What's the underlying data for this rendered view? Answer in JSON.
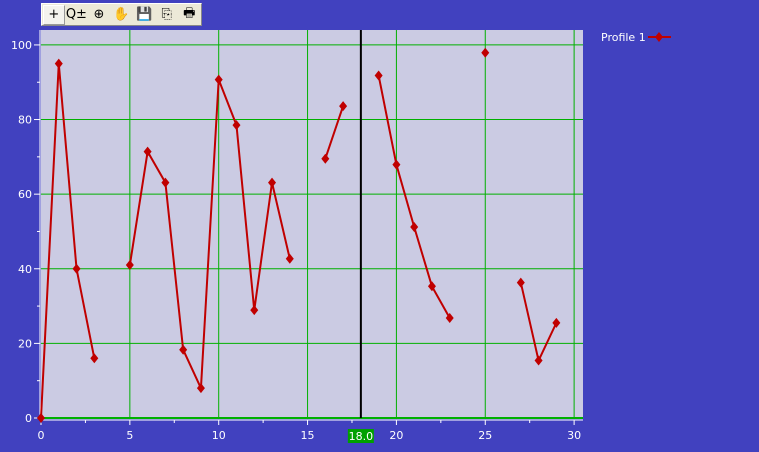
{
  "toolbar": {
    "items": [
      {
        "name": "crosshair-icon",
        "glyph": "+"
      },
      {
        "name": "zoom-plus-minus-icon",
        "glyph": "Q±"
      },
      {
        "name": "zoom-target-icon",
        "glyph": "⊕"
      },
      {
        "name": "pan-hand-icon",
        "glyph": "✋"
      },
      {
        "name": "save-icon",
        "glyph": "💾"
      },
      {
        "name": "copy-icon",
        "glyph": "⎘"
      },
      {
        "name": "print-icon",
        "glyph": "🖶"
      }
    ]
  },
  "cursor": {
    "x": 18.0,
    "label": "18.0",
    "color": "#00A000"
  },
  "colors": {
    "background": "#4141BF",
    "plot": "#CBCBE3",
    "grid": "#00B000",
    "series": "#C00000"
  },
  "chart_data": {
    "type": "line",
    "xlim": [
      0,
      30.5
    ],
    "ylim": [
      0,
      104
    ],
    "xticks": [
      0,
      5,
      10,
      15,
      20,
      25,
      30
    ],
    "yticks": [
      0,
      20,
      40,
      60,
      80,
      100
    ],
    "grid": true,
    "legend": "top-right",
    "series": [
      {
        "name": "Profile 1",
        "points": [
          [
            0,
            0
          ],
          [
            1,
            95
          ],
          [
            2,
            40
          ],
          [
            3,
            16
          ],
          [
            4,
            null
          ],
          [
            5,
            41
          ],
          [
            6,
            71.4
          ],
          [
            7,
            63.1
          ],
          [
            8,
            18.3
          ],
          [
            9,
            8
          ],
          [
            10,
            90.7
          ],
          [
            11,
            78.5
          ],
          [
            12,
            28.9
          ],
          [
            13,
            63.1
          ],
          [
            14,
            42.7
          ],
          [
            15,
            null
          ],
          [
            16,
            69.5
          ],
          [
            17,
            83.6
          ],
          [
            18,
            null
          ],
          [
            19,
            91.8
          ],
          [
            20,
            67.9
          ],
          [
            21,
            51.2
          ],
          [
            22,
            35.3
          ],
          [
            23,
            26.8
          ],
          [
            24,
            null
          ],
          [
            25,
            97.9
          ],
          [
            26,
            null
          ],
          [
            27,
            36.3
          ],
          [
            28,
            15.4
          ],
          [
            29,
            25.5
          ]
        ]
      }
    ]
  }
}
